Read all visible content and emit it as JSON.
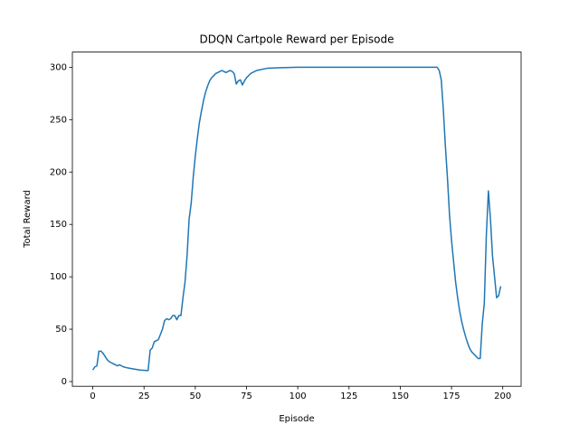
{
  "chart_data": {
    "type": "line",
    "title": "DDQN Cartpole Reward per Episode",
    "x_label": "Episode",
    "y_label": "Total Reward",
    "x": [
      0,
      1,
      2,
      3,
      4,
      5,
      6,
      7,
      8,
      9,
      10,
      11,
      12,
      13,
      14,
      15,
      17,
      20,
      23,
      27,
      28,
      29,
      30,
      31,
      32,
      33,
      34,
      35,
      36,
      37,
      38,
      39,
      40,
      41,
      42,
      43,
      44,
      45,
      46,
      47,
      48,
      49,
      50,
      51,
      52,
      53,
      54,
      55,
      56,
      57,
      58,
      59,
      60,
      61,
      62,
      63,
      64,
      65,
      66,
      67,
      68,
      69,
      70,
      71,
      72,
      73,
      74,
      75,
      77,
      80,
      85,
      90,
      100,
      167,
      168,
      169,
      170,
      171,
      172,
      173,
      174,
      175,
      176,
      177,
      178,
      179,
      180,
      181,
      182,
      183,
      184,
      185,
      186,
      187,
      188,
      189,
      190,
      191,
      192,
      193,
      194,
      195,
      196,
      197,
      198,
      199
    ],
    "series": [
      {
        "name": "Total Reward",
        "color": "#1f77b4",
        "values": [
          11,
          14,
          15,
          29,
          29,
          27,
          24,
          21,
          19,
          18,
          17,
          16,
          15,
          16,
          15,
          14,
          13,
          12,
          11,
          10.5,
          30,
          32,
          38,
          39,
          40,
          45,
          50,
          58,
          60,
          59,
          60,
          63,
          63,
          59,
          63,
          63,
          80,
          95,
          120,
          155,
          170,
          195,
          215,
          232,
          247,
          258,
          268,
          276,
          282,
          287,
          290,
          292,
          294,
          295,
          296,
          297,
          296,
          295,
          296,
          297,
          296,
          294,
          284,
          287,
          288,
          283,
          287,
          290,
          294,
          297,
          299,
          299.5,
          300,
          300,
          300,
          297,
          288,
          260,
          225,
          195,
          160,
          135,
          115,
          95,
          80,
          67,
          57,
          49,
          42,
          36,
          31,
          28,
          26,
          24,
          22,
          22,
          55,
          75,
          140,
          182,
          155,
          120,
          100,
          80,
          82,
          91
        ]
      }
    ],
    "xlim": [
      -9.95,
      208.95
    ],
    "ylim": [
      -4.5,
      314.5
    ],
    "xticks": [
      0,
      25,
      50,
      75,
      100,
      125,
      150,
      175,
      200
    ],
    "yticks": [
      0,
      50,
      100,
      150,
      200,
      250,
      300
    ]
  }
}
